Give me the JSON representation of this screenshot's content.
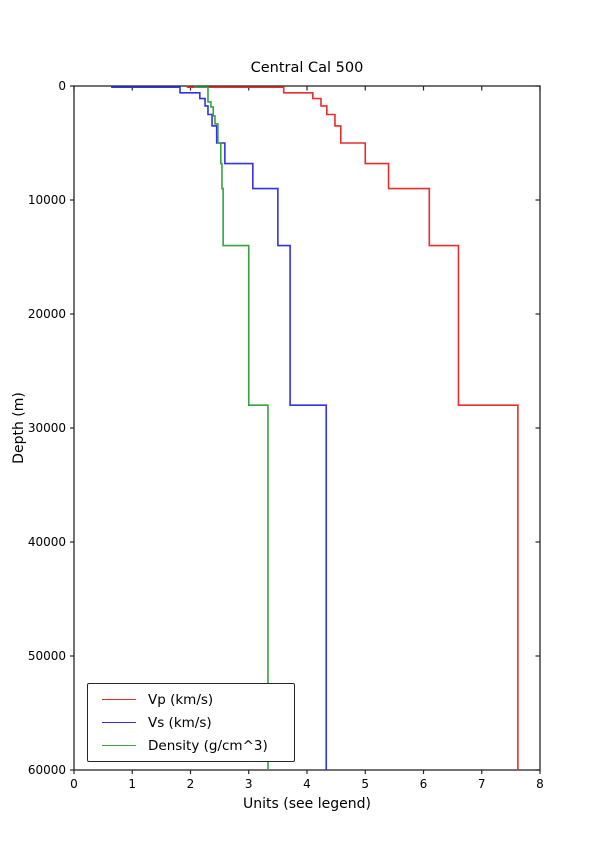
{
  "chart_data": {
    "type": "line",
    "variant": "step-depth-profile",
    "title": "Central Cal 500",
    "xlabel": "Units (see legend)",
    "ylabel": "Depth (m)",
    "xlim": [
      0,
      8
    ],
    "ylim": [
      0,
      60000
    ],
    "y_axis_inverted_depth": true,
    "grid": false,
    "legend_position": "lower left",
    "xticks": [
      0,
      1,
      2,
      3,
      4,
      5,
      6,
      7,
      8
    ],
    "yticks": [
      0,
      10000,
      20000,
      30000,
      40000,
      50000,
      60000
    ],
    "max_depth": 60000,
    "series": [
      {
        "name": "Vp (km/s)",
        "color": "#e62e2e",
        "layers_depth_value": [
          [
            0,
            1.95
          ],
          [
            100,
            3.6
          ],
          [
            600,
            4.1
          ],
          [
            1100,
            4.24
          ],
          [
            1750,
            4.34
          ],
          [
            2500,
            4.48
          ],
          [
            3500,
            4.58
          ],
          [
            5000,
            5.0
          ],
          [
            6800,
            5.4
          ],
          [
            9000,
            6.1
          ],
          [
            14000,
            6.6
          ],
          [
            28000,
            7.62
          ]
        ]
      },
      {
        "name": "Vs (km/s)",
        "color": "#3232e6",
        "layers_depth_value": [
          [
            0,
            0.65
          ],
          [
            100,
            1.82
          ],
          [
            600,
            2.16
          ],
          [
            1100,
            2.25
          ],
          [
            1750,
            2.3
          ],
          [
            2500,
            2.37
          ],
          [
            3500,
            2.45
          ],
          [
            5000,
            2.59
          ],
          [
            6800,
            3.07
          ],
          [
            9000,
            3.5
          ],
          [
            14000,
            3.71
          ],
          [
            28000,
            4.33
          ]
        ]
      },
      {
        "name": "Density (g/cm^3)",
        "color": "#35a342",
        "layers_depth_value": [
          [
            0,
            2.08
          ],
          [
            100,
            2.3
          ],
          [
            1400,
            2.35
          ],
          [
            1840,
            2.39
          ],
          [
            2630,
            2.42
          ],
          [
            3330,
            2.47
          ],
          [
            5000,
            2.52
          ],
          [
            6800,
            2.54
          ],
          [
            9000,
            2.56
          ],
          [
            14000,
            3.0
          ],
          [
            28000,
            3.33
          ]
        ]
      }
    ]
  }
}
